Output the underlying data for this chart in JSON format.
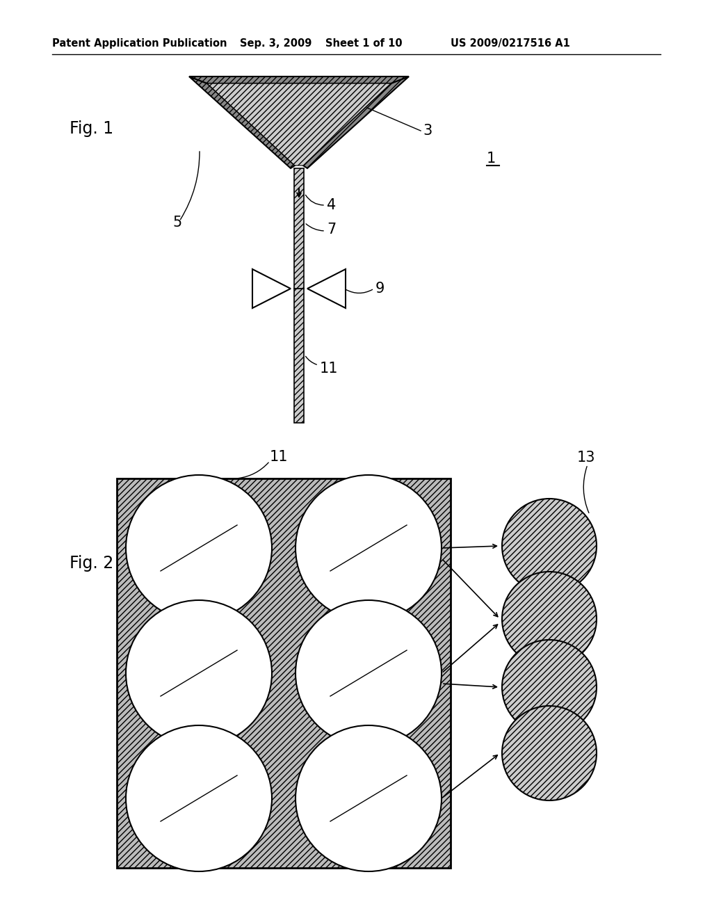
{
  "bg_color": "#ffffff",
  "header_text": "Patent Application Publication",
  "header_date": "Sep. 3, 2009",
  "header_sheet": "Sheet 1 of 10",
  "header_patent": "US 2009/0217516 A1",
  "fig1_label": "Fig. 1",
  "fig2_label": "Fig. 2",
  "label_1": "1",
  "label_3": "3",
  "label_4": "4",
  "label_5": "5",
  "label_7": "7",
  "label_9": "9",
  "label_11": "11",
  "label_13": "13",
  "line_color": "#000000",
  "hatch_dark": "////",
  "hatch_light": "////"
}
